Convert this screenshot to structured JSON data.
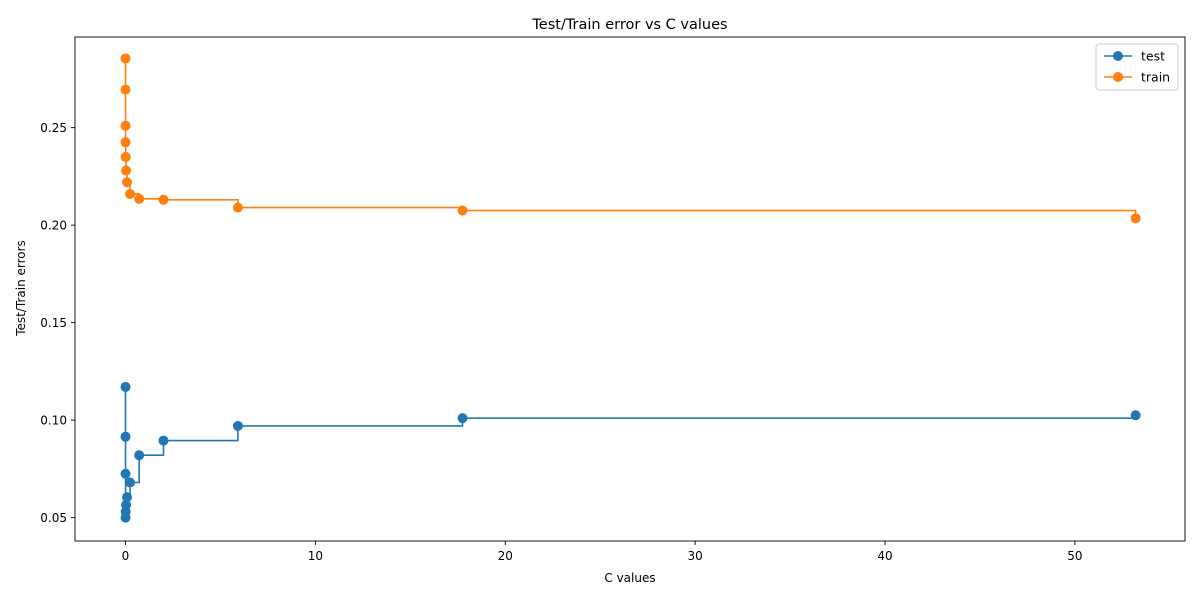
{
  "chart_data": {
    "type": "line",
    "drawstyle": "steps-post",
    "title": "Test/Train error vs C values",
    "xlabel": "C values",
    "ylabel": "Test/Train errors",
    "xlim": [
      -2.66,
      55.8
    ],
    "ylim": [
      0.038,
      0.2965
    ],
    "xticks": [
      0,
      10,
      20,
      30,
      40,
      50
    ],
    "xtick_labels": [
      "0",
      "10",
      "20",
      "30",
      "40",
      "50"
    ],
    "yticks": [
      0.05,
      0.1,
      0.15,
      0.2,
      0.25
    ],
    "ytick_labels": [
      "0.05",
      "0.10",
      "0.15",
      "0.20",
      "0.25"
    ],
    "grid": false,
    "legend_position": "top-right",
    "series": [
      {
        "name": "test",
        "color": "#1f77b4",
        "x": [
          0.0001,
          0.0003,
          0.001,
          0.003,
          0.01,
          0.03,
          0.08,
          0.24,
          0.72,
          2.0,
          5.92,
          17.75,
          53.2
        ],
        "y": [
          0.117,
          0.0915,
          0.0725,
          0.05,
          0.053,
          0.0565,
          0.0605,
          0.068,
          0.082,
          0.0895,
          0.097,
          0.101,
          0.1025
        ]
      },
      {
        "name": "train",
        "color": "#ff7f0e",
        "x": [
          0.0001,
          0.0003,
          0.001,
          0.003,
          0.01,
          0.03,
          0.08,
          0.24,
          0.72,
          2.0,
          5.92,
          17.75,
          53.2
        ],
        "y": [
          0.2855,
          0.2695,
          0.251,
          0.2425,
          0.235,
          0.228,
          0.222,
          0.216,
          0.2135,
          0.213,
          0.209,
          0.2075,
          0.2035
        ]
      }
    ]
  }
}
